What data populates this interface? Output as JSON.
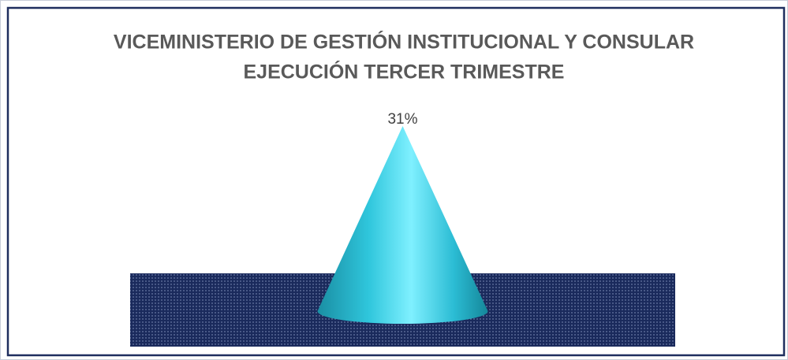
{
  "chart_data": {
    "type": "cone",
    "title": [
      "VICEMINISTERIO DE GESTIÓN INSTITUCIONAL Y CONSULAR",
      "EJECUCIÓN TERCER TRIMESTRE"
    ],
    "categories": [
      null
    ],
    "values": [
      31
    ],
    "value_labels": [
      "31%"
    ],
    "color": "#2fc6dc"
  }
}
